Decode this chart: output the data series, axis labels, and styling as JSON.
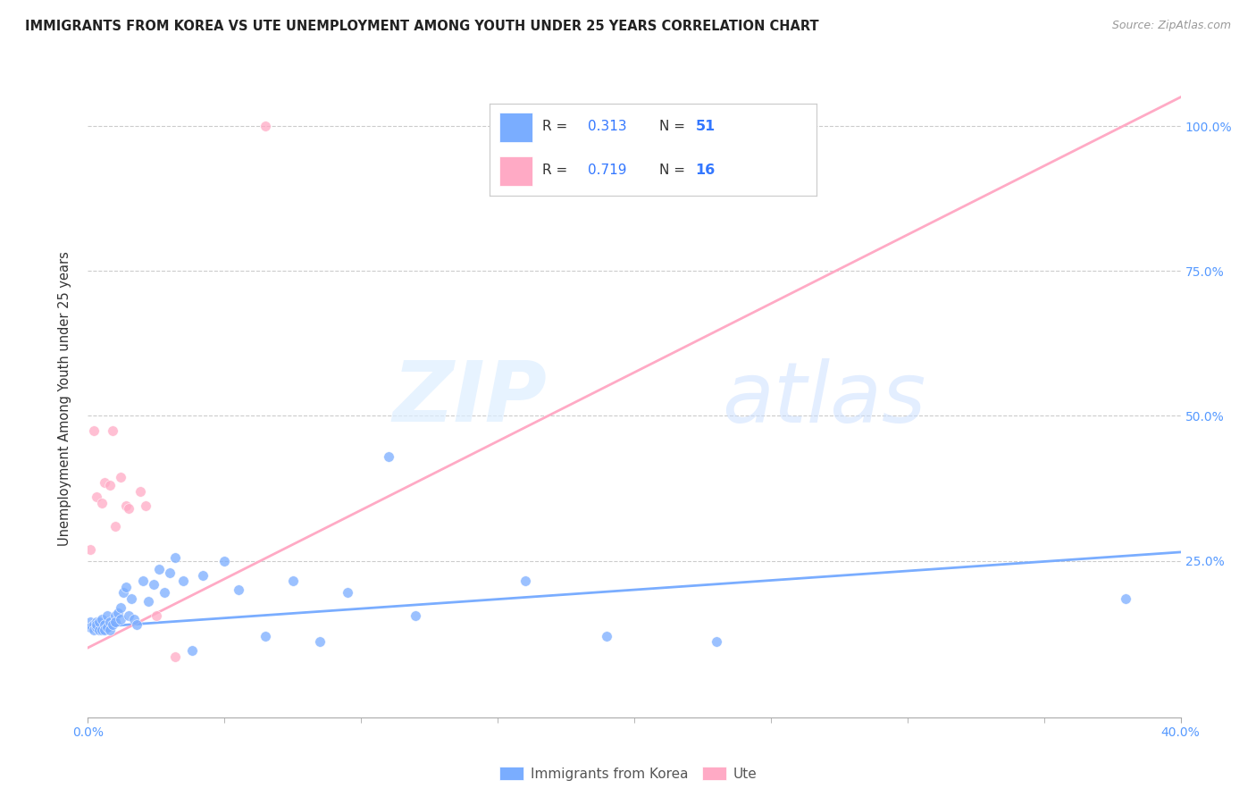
{
  "title": "IMMIGRANTS FROM KOREA VS UTE UNEMPLOYMENT AMONG YOUTH UNDER 25 YEARS CORRELATION CHART",
  "source": "Source: ZipAtlas.com",
  "ylabel": "Unemployment Among Youth under 25 years",
  "xlim": [
    0.0,
    0.4
  ],
  "ylim": [
    -0.02,
    1.08
  ],
  "xtick_labels_ends": [
    "0.0%",
    "40.0%"
  ],
  "xtick_values_ends": [
    0.0,
    0.4
  ],
  "xtick_values_minor": [
    0.05,
    0.1,
    0.15,
    0.2,
    0.25,
    0.3,
    0.35
  ],
  "ytick_labels": [
    "100.0%",
    "75.0%",
    "50.0%",
    "25.0%"
  ],
  "ytick_values": [
    1.0,
    0.75,
    0.5,
    0.25
  ],
  "blue_color": "#7aadff",
  "pink_color": "#ffaac5",
  "legend_r_blue": "0.313",
  "legend_n_blue": "51",
  "legend_r_pink": "0.719",
  "legend_n_pink": "16",
  "blue_scatter_x": [
    0.001,
    0.001,
    0.002,
    0.002,
    0.003,
    0.003,
    0.003,
    0.004,
    0.004,
    0.005,
    0.005,
    0.006,
    0.006,
    0.007,
    0.007,
    0.008,
    0.008,
    0.009,
    0.01,
    0.01,
    0.011,
    0.012,
    0.012,
    0.013,
    0.014,
    0.015,
    0.016,
    0.017,
    0.018,
    0.02,
    0.022,
    0.024,
    0.026,
    0.028,
    0.03,
    0.032,
    0.035,
    0.038,
    0.042,
    0.05,
    0.055,
    0.065,
    0.075,
    0.085,
    0.095,
    0.11,
    0.12,
    0.16,
    0.19,
    0.23,
    0.38
  ],
  "blue_scatter_y": [
    0.145,
    0.135,
    0.14,
    0.13,
    0.145,
    0.135,
    0.14,
    0.13,
    0.145,
    0.13,
    0.15,
    0.14,
    0.13,
    0.155,
    0.135,
    0.145,
    0.13,
    0.14,
    0.155,
    0.145,
    0.16,
    0.15,
    0.17,
    0.195,
    0.205,
    0.155,
    0.185,
    0.15,
    0.14,
    0.215,
    0.18,
    0.21,
    0.235,
    0.195,
    0.23,
    0.255,
    0.215,
    0.095,
    0.225,
    0.25,
    0.2,
    0.12,
    0.215,
    0.11,
    0.195,
    0.43,
    0.155,
    0.215,
    0.12,
    0.11,
    0.185
  ],
  "pink_scatter_x": [
    0.001,
    0.002,
    0.003,
    0.005,
    0.006,
    0.008,
    0.009,
    0.01,
    0.012,
    0.014,
    0.015,
    0.019,
    0.021,
    0.025,
    0.032,
    0.065
  ],
  "pink_scatter_y": [
    0.27,
    0.475,
    0.36,
    0.35,
    0.385,
    0.38,
    0.475,
    0.31,
    0.395,
    0.345,
    0.34,
    0.37,
    0.345,
    0.155,
    0.085,
    1.0
  ],
  "blue_line_x": [
    0.0,
    0.4
  ],
  "blue_line_y": [
    0.135,
    0.265
  ],
  "pink_line_x": [
    0.0,
    0.4
  ],
  "pink_line_y": [
    0.1,
    1.05
  ],
  "watermark_zip": "ZIP",
  "watermark_atlas": "atlas",
  "legend_label_blue": "Immigrants from Korea",
  "legend_label_pink": "Ute"
}
